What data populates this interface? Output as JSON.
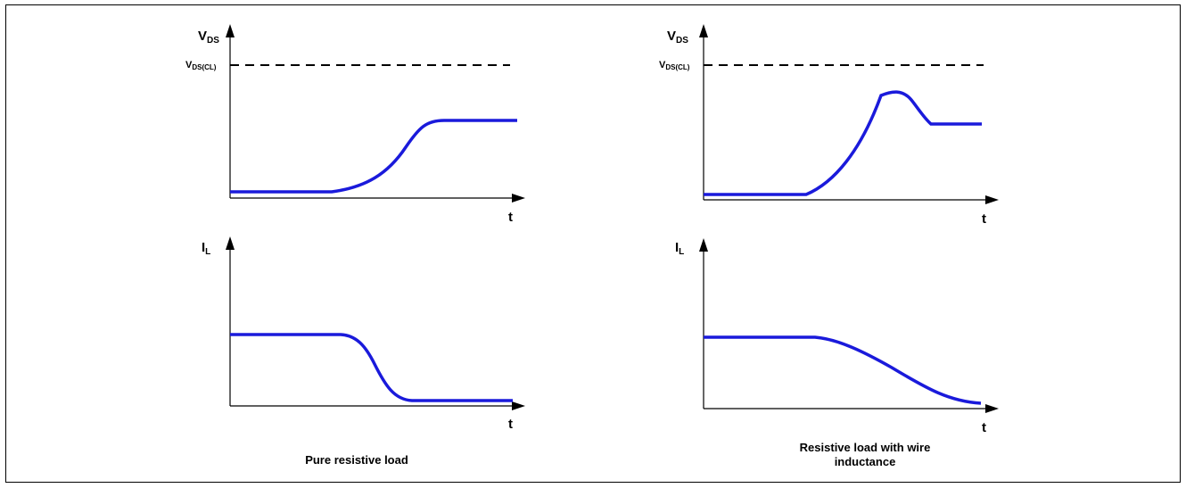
{
  "panels": {
    "left_top": {
      "y_label_main": "V",
      "y_label_sub": "DS",
      "ref_label_main": "V",
      "ref_label_sub": "DS(CL)",
      "x_label": "t"
    },
    "left_bottom": {
      "y_label_main": "I",
      "y_label_sub": "L",
      "x_label": "t"
    },
    "right_top": {
      "y_label_main": "V",
      "y_label_sub": "DS",
      "ref_label_main": "V",
      "ref_label_sub": "DS(CL)",
      "x_label": "t"
    },
    "right_bottom": {
      "y_label_main": "I",
      "y_label_sub": "L",
      "x_label": "t"
    }
  },
  "captions": {
    "left": "Pure resistive load",
    "right_line1": "Resistive load with wire",
    "right_line2": "inductance"
  },
  "colors": {
    "waveform": "#1a1adb",
    "axes": "#000000",
    "reference": "#000000"
  }
}
